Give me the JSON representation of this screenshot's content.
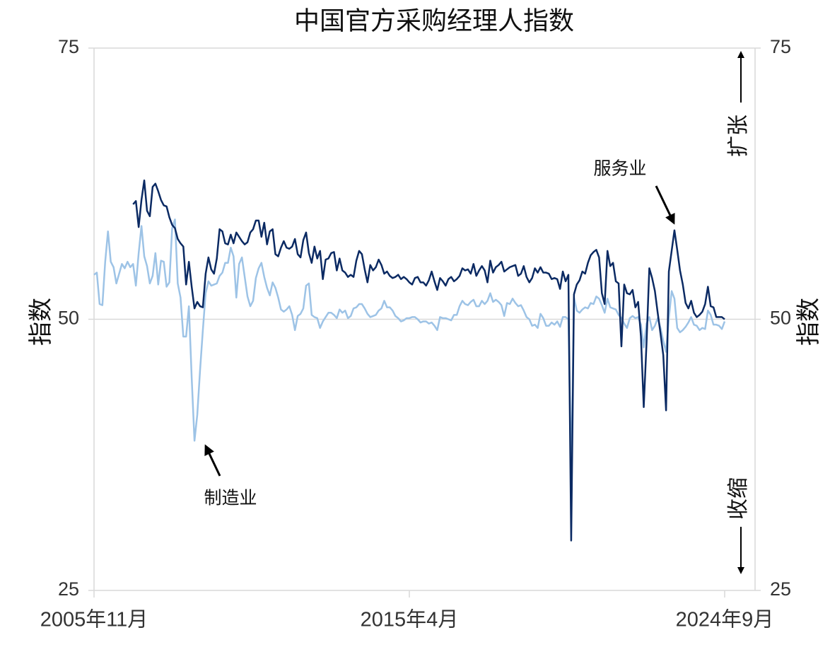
{
  "chart_data": {
    "type": "line",
    "title": "中国官方采购经理人指数",
    "y_label": "指数",
    "y2_label": "指数",
    "annotations": [
      "服务业",
      "制造业",
      "扩张",
      "收缩"
    ],
    "categories": [
      "2005年11月",
      null,
      null,
      null,
      null,
      null,
      null,
      null,
      null,
      null,
      null,
      null,
      null,
      null,
      null,
      null,
      null,
      null,
      null,
      null,
      null,
      null,
      null,
      null,
      null,
      null,
      null,
      null,
      null,
      null,
      null,
      null,
      null,
      null,
      null,
      null,
      null,
      null,
      null,
      null,
      null,
      null,
      null,
      null,
      null,
      null,
      null,
      null,
      null,
      null,
      null,
      null,
      null,
      null,
      null,
      null,
      null,
      null,
      null,
      null,
      null,
      null,
      null,
      null,
      null,
      null,
      null,
      null,
      null,
      null,
      null,
      null,
      null,
      null,
      null,
      null,
      null,
      null,
      null,
      null,
      null,
      null,
      null,
      null,
      null,
      null,
      null,
      null,
      null,
      null,
      null,
      null,
      null,
      null,
      null,
      null,
      null,
      null,
      null,
      null,
      null,
      null,
      null,
      null,
      null,
      null,
      null,
      null,
      null,
      null,
      null,
      null,
      null,
      "2015年4月",
      null,
      null,
      null,
      null,
      null,
      null,
      null,
      null,
      null,
      null,
      null,
      null,
      null,
      null,
      null,
      null,
      null,
      null,
      null,
      null,
      null,
      null,
      null,
      null,
      null,
      null,
      null,
      null,
      null,
      null,
      null,
      null,
      null,
      null,
      null,
      null,
      null,
      null,
      null,
      null,
      null,
      null,
      null,
      null,
      null,
      null,
      null,
      null,
      null,
      null,
      null,
      null,
      null,
      null,
      null,
      null,
      null,
      null,
      null,
      null,
      null,
      null,
      null,
      null,
      null,
      null,
      null,
      null,
      null,
      null,
      null,
      null,
      null,
      null,
      null,
      null,
      null,
      null,
      null,
      null,
      null,
      null,
      null,
      null,
      null,
      null,
      null,
      null,
      null,
      null,
      null,
      null,
      null,
      null,
      null,
      null,
      null,
      null,
      null,
      null,
      null,
      null,
      null,
      null,
      null,
      null,
      null,
      null,
      null,
      null,
      null,
      null,
      "2024年9月"
    ],
    "series": [
      {
        "name": "制造业",
        "color": "#9dc3e6",
        "values": [
          54.1,
          54.3,
          51.4,
          51.3,
          55.3,
          58.1,
          55.3,
          54.8,
          53.3,
          54.2,
          55.1,
          54.7,
          55.3,
          54.8,
          55.1,
          53.1,
          56.1,
          58.6,
          55.8,
          54.9,
          53.3,
          54.0,
          56.1,
          53.2,
          55.4,
          55.3,
          53.0,
          53.4,
          58.4,
          59.2,
          53.3,
          52.0,
          48.4,
          48.4,
          51.2,
          44.6,
          38.8,
          41.2,
          45.3,
          49.0,
          52.4,
          53.5,
          53.1,
          53.2,
          53.3,
          54.0,
          54.3,
          55.2,
          55.2,
          56.6,
          55.8,
          52.0,
          55.1,
          55.7,
          53.9,
          52.1,
          51.2,
          51.7,
          53.8,
          54.7,
          55.2,
          53.9,
          52.9,
          52.2,
          53.4,
          52.9,
          52.0,
          50.9,
          50.7,
          50.9,
          51.2,
          50.4,
          49.0,
          50.3,
          50.5,
          51.0,
          53.1,
          53.3,
          50.4,
          50.2,
          50.1,
          49.2,
          49.8,
          50.2,
          50.6,
          50.6,
          50.4,
          50.1,
          50.9,
          50.6,
          50.8,
          50.1,
          50.3,
          51.0,
          51.1,
          51.4,
          51.4,
          51.0,
          50.5,
          50.2,
          50.3,
          50.4,
          50.8,
          51.0,
          51.7,
          51.1,
          51.1,
          50.8,
          50.3,
          50.1,
          49.8,
          49.9,
          50.1,
          50.1,
          50.2,
          50.2,
          50.0,
          49.7,
          49.8,
          49.8,
          49.6,
          49.7,
          49.4,
          49.0,
          50.2,
          50.1,
          50.1,
          50.0,
          49.9,
          50.4,
          50.4,
          51.2,
          51.7,
          51.4,
          51.3,
          51.6,
          51.8,
          51.2,
          51.2,
          51.7,
          51.4,
          51.7,
          52.4,
          51.6,
          51.8,
          51.6,
          51.3,
          50.3,
          51.5,
          51.4,
          51.9,
          51.5,
          51.2,
          51.3,
          50.8,
          50.2,
          50.0,
          49.4,
          49.5,
          49.2,
          50.5,
          50.1,
          49.4,
          49.4,
          49.7,
          49.5,
          49.8,
          49.3,
          50.2,
          50.2,
          50.0,
          35.7,
          52.0,
          50.8,
          50.6,
          50.9,
          51.1,
          51.0,
          51.5,
          51.4,
          52.1,
          51.9,
          51.3,
          50.6,
          51.9,
          51.1,
          51.0,
          50.9,
          50.4,
          50.1,
          49.6,
          49.2,
          50.1,
          50.3,
          50.1,
          50.2,
          49.5,
          47.4,
          49.6,
          50.2,
          49.0,
          49.4,
          50.1,
          49.2,
          48.0,
          47.0,
          50.1,
          52.6,
          51.9,
          49.2,
          48.8,
          49.0,
          49.3,
          49.7,
          50.2,
          49.5,
          49.4,
          49.0,
          49.2,
          49.1,
          50.8,
          50.4,
          49.5,
          49.5,
          49.4,
          49.1,
          49.8
        ]
      },
      {
        "name": "服务业",
        "color": "#0b2a63",
        "values": [
          null,
          null,
          null,
          null,
          null,
          null,
          null,
          null,
          null,
          null,
          null,
          null,
          null,
          null,
          60.6,
          60.9,
          58.5,
          61.0,
          62.8,
          60.0,
          59.5,
          62.2,
          62.5,
          61.8,
          61.0,
          60.5,
          60.4,
          59.4,
          58.7,
          58.4,
          57.4,
          57.0,
          56.7,
          53.2,
          55.3,
          53.0,
          51.0,
          51.6,
          51.2,
          51.1,
          54.2,
          55.7,
          54.6,
          54.2,
          55.6,
          58.3,
          58.1,
          57.0,
          56.9,
          57.8,
          57.0,
          58.0,
          57.6,
          57.2,
          56.9,
          57.1,
          58.0,
          58.3,
          59.1,
          59.1,
          57.6,
          58.9,
          56.9,
          58.1,
          58.3,
          56.0,
          55.8,
          56.6,
          57.2,
          56.6,
          56.5,
          56.7,
          57.4,
          56.0,
          55.7,
          57.3,
          58.0,
          56.1,
          55.2,
          56.7,
          55.6,
          56.3,
          53.7,
          55.5,
          55.6,
          56.1,
          56.2,
          54.5,
          55.6,
          54.5,
          54.3,
          53.9,
          54.1,
          53.9,
          55.4,
          56.3,
          56.0,
          54.6,
          53.4,
          55.0,
          54.5,
          54.8,
          55.5,
          55.0,
          54.2,
          54.4,
          54.0,
          53.8,
          53.9,
          54.1,
          53.7,
          53.9,
          53.7,
          53.4,
          53.2,
          53.8,
          53.9,
          53.4,
          53.4,
          53.1,
          53.6,
          54.4,
          53.5,
          52.7,
          53.8,
          53.5,
          53.1,
          53.7,
          53.9,
          53.5,
          53.7,
          54.0,
          54.7,
          54.5,
          54.6,
          54.2,
          55.1,
          54.0,
          54.5,
          54.9,
          54.5,
          53.4,
          55.4,
          54.3,
          54.8,
          55.0,
          55.3,
          54.4,
          54.6,
          54.8,
          54.9,
          55.0,
          54.0,
          54.2,
          54.9,
          53.9,
          53.4,
          53.8,
          54.7,
          54.3,
          54.8,
          54.3,
          54.3,
          54.2,
          53.7,
          53.8,
          53.7,
          52.8,
          54.4,
          53.5,
          54.1,
          29.6,
          52.3,
          53.2,
          53.6,
          54.4,
          54.2,
          55.2,
          55.9,
          56.2,
          56.4,
          55.7,
          52.4,
          51.4,
          56.3,
          54.9,
          55.2,
          53.5,
          53.3,
          47.5,
          53.2,
          52.4,
          52.3,
          52.7,
          51.1,
          51.6,
          48.4,
          41.9,
          47.8,
          54.7,
          53.8,
          52.6,
          50.6,
          48.7,
          46.7,
          41.6,
          54.4,
          56.3,
          58.2,
          56.4,
          54.5,
          53.2,
          51.5,
          51.0,
          51.7,
          50.6,
          50.2,
          50.4,
          50.7,
          51.4,
          53.0,
          51.2,
          51.1,
          50.2,
          50.2,
          50.2,
          50.0
        ]
      }
    ],
    "ylim": [
      25,
      75
    ],
    "yticks": [
      25,
      50,
      75
    ],
    "y2lim": [
      25,
      75
    ],
    "y2ticks": [
      25,
      50,
      75
    ],
    "grid": true
  }
}
